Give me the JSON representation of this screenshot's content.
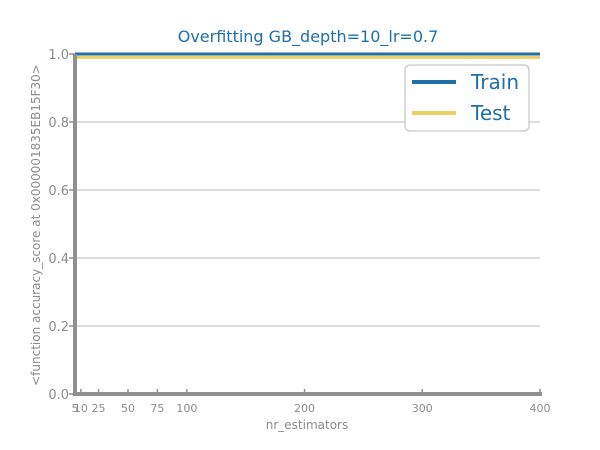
{
  "chart_data": {
    "type": "line",
    "title": "Overfitting GB_depth=10_lr=0.7",
    "xlabel": "nr_estimators",
    "ylabel": "<function accuracy_score at 0x000001835EB15F30>",
    "x": [
      5,
      10,
      25,
      50,
      75,
      100,
      200,
      300,
      400
    ],
    "x_ticks": [
      5,
      10,
      25,
      50,
      75,
      100,
      200,
      300,
      400
    ],
    "y_ticks": [
      0.0,
      0.2,
      0.4,
      0.6,
      0.8,
      1.0
    ],
    "xlim": [
      5,
      400
    ],
    "ylim": [
      0.0,
      1.0
    ],
    "grid": "horizontal",
    "legend_position": "top-right",
    "series": [
      {
        "name": "Train",
        "color": "#1f6fa9",
        "values": [
          1.0,
          1.0,
          1.0,
          1.0,
          1.0,
          1.0,
          1.0,
          1.0,
          1.0
        ]
      },
      {
        "name": "Test",
        "color": "#f0d060",
        "values": [
          0.99,
          0.99,
          0.99,
          0.99,
          0.99,
          0.99,
          0.99,
          0.99,
          0.99
        ]
      }
    ]
  }
}
